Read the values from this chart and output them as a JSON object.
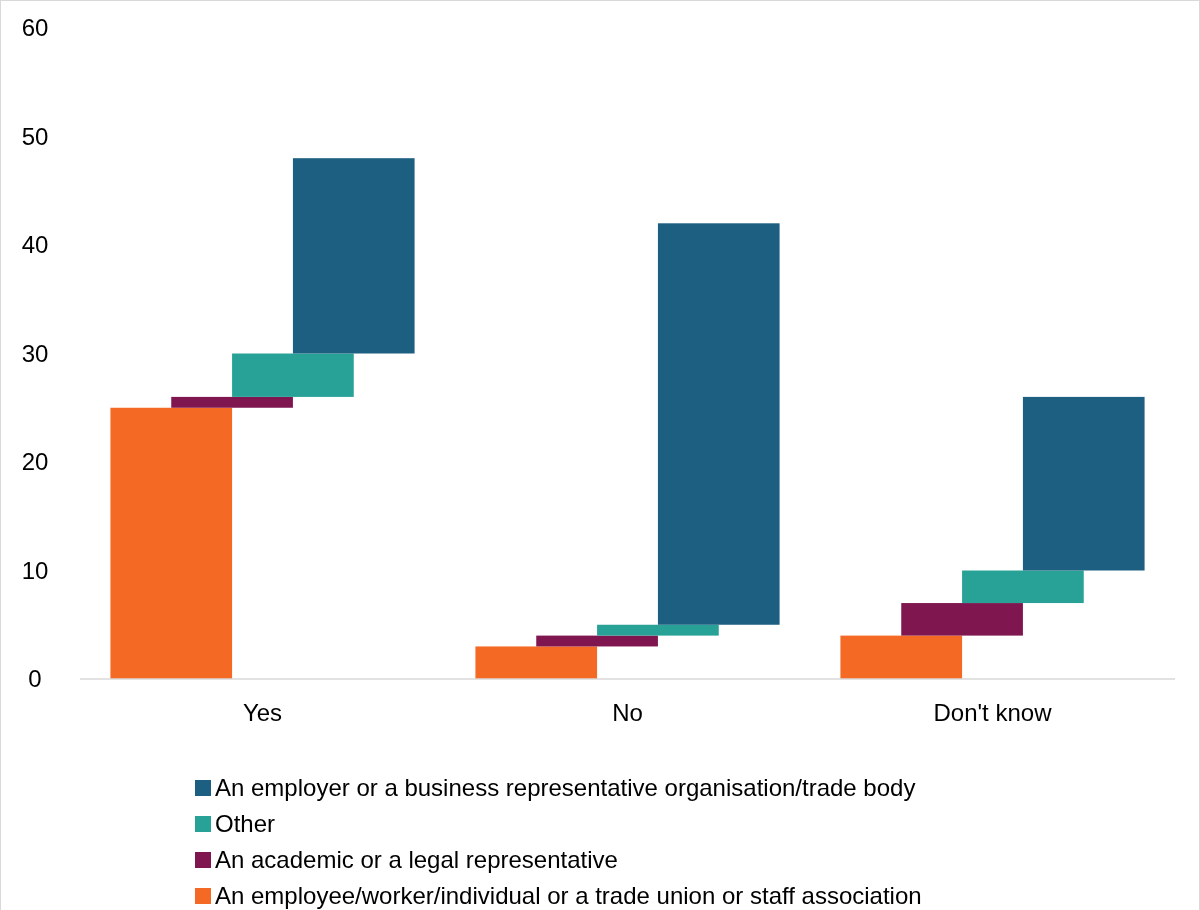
{
  "chart_data": {
    "type": "bar",
    "categories": [
      "Yes",
      "No",
      "Don't know"
    ],
    "series": [
      {
        "name": "An employee/worker/individual or a trade union or staff association",
        "color": "#f46a25",
        "values": [
          25,
          3,
          4
        ],
        "base": [
          0,
          0,
          0
        ]
      },
      {
        "name": "An academic or a legal representative",
        "color": "#801650",
        "values": [
          1,
          1,
          3
        ],
        "base": [
          25,
          3,
          4
        ]
      },
      {
        "name": "Other",
        "color": "#28a197",
        "values": [
          4,
          1,
          3
        ],
        "base": [
          26,
          4,
          7
        ]
      },
      {
        "name": "An employer or a business representative organisation/trade body",
        "color": "#1c5f80",
        "values": [
          18,
          37,
          16
        ],
        "base": [
          30,
          5,
          10
        ]
      }
    ],
    "ylim": [
      0,
      60
    ],
    "yticks": [
      0,
      10,
      20,
      30,
      40,
      50,
      60
    ],
    "grid": false,
    "legend": "bottom"
  }
}
